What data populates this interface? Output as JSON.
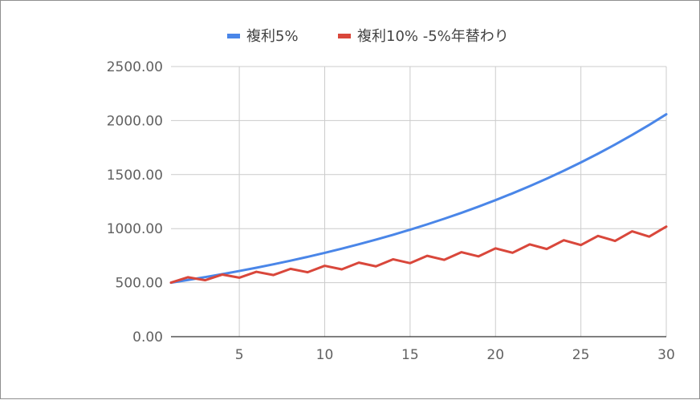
{
  "chart_data": {
    "type": "line",
    "x": [
      1,
      2,
      3,
      4,
      5,
      6,
      7,
      8,
      9,
      10,
      11,
      12,
      13,
      14,
      15,
      16,
      17,
      18,
      19,
      20,
      21,
      22,
      23,
      24,
      25,
      26,
      27,
      28,
      29,
      30
    ],
    "series": [
      {
        "name": "複利5%",
        "color": "#4a86e8",
        "values": [
          500.0,
          525.0,
          551.25,
          578.81,
          607.75,
          638.14,
          670.05,
          703.55,
          738.73,
          775.66,
          814.45,
          855.17,
          897.93,
          942.83,
          989.97,
          1039.47,
          1091.44,
          1146.01,
          1203.32,
          1263.48,
          1326.65,
          1392.99,
          1462.64,
          1535.77,
          1612.56,
          1693.19,
          1777.85,
          1866.74,
          1960.08,
          2058.08
        ]
      },
      {
        "name": "複利10% -5%年替わり",
        "color": "#d9473b",
        "values": [
          500.0,
          550.0,
          522.5,
          574.75,
          546.01,
          600.61,
          570.58,
          627.64,
          596.26,
          655.88,
          623.09,
          685.4,
          651.13,
          716.24,
          680.43,
          748.47,
          711.05,
          782.15,
          743.05,
          817.35,
          776.48,
          854.13,
          811.42,
          892.56,
          847.94,
          932.73,
          886.09,
          974.7,
          925.97,
          1018.56
        ]
      }
    ],
    "xticks": [
      "5",
      "10",
      "15",
      "20",
      "25",
      "30"
    ],
    "yticks": [
      "0.00",
      "500.00",
      "1000.00",
      "1500.00",
      "2000.00",
      "2500.00"
    ],
    "xlim": [
      1,
      30
    ],
    "ylim": [
      0,
      2500
    ],
    "grid": true,
    "legend": "top-center"
  }
}
